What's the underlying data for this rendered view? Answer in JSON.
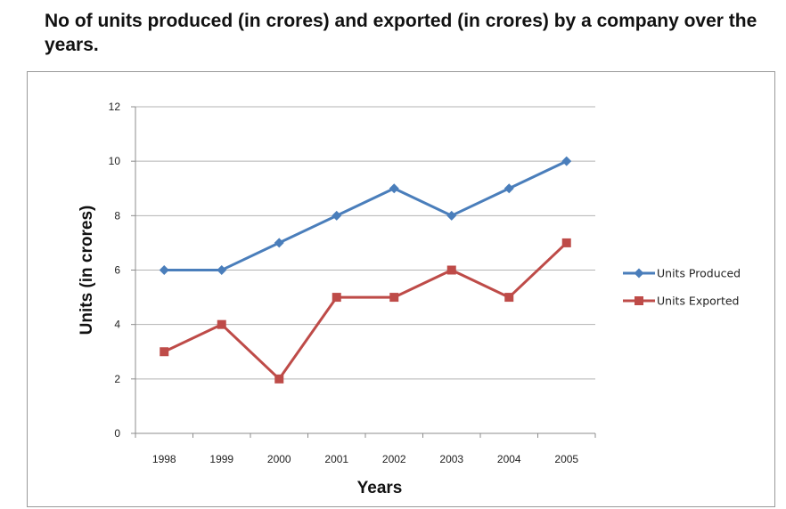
{
  "chart_data": {
    "type": "line",
    "title": "No of units produced (in crores) and exported (in crores) by a company over the years.",
    "xlabel": "Years",
    "ylabel": "Units (in crores)",
    "categories": [
      "1998",
      "1999",
      "2000",
      "2001",
      "2002",
      "2003",
      "2004",
      "2005"
    ],
    "ylim": [
      0,
      12
    ],
    "yticks": [
      "0",
      "2",
      "4",
      "6",
      "8",
      "10",
      "12"
    ],
    "grid": true,
    "legend_position": "right",
    "series": [
      {
        "name": "Units Produced",
        "values": [
          6,
          6,
          7,
          8,
          9,
          8,
          9,
          10
        ],
        "color": "#4a7ebb",
        "marker": "diamond"
      },
      {
        "name": "Units Exported",
        "values": [
          3,
          4,
          2,
          5,
          5,
          6,
          5,
          7
        ],
        "color": "#be4b48",
        "marker": "square"
      }
    ]
  }
}
